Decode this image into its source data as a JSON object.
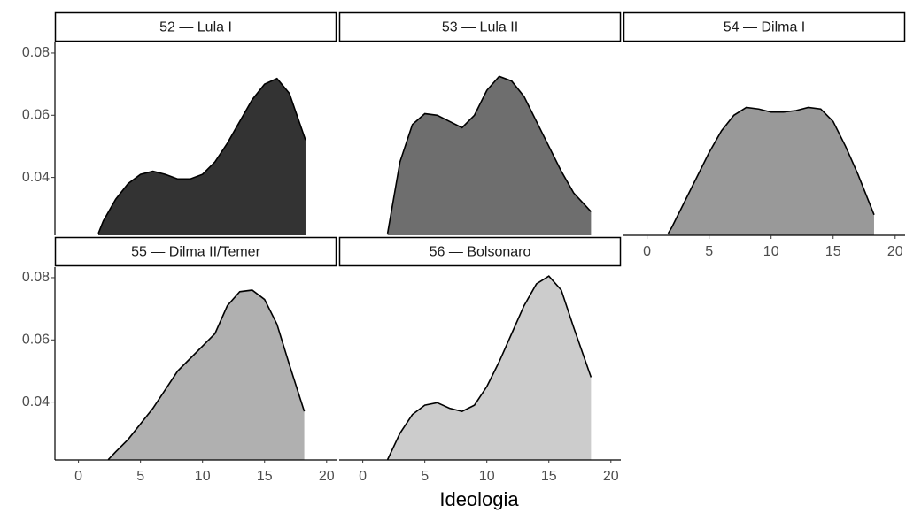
{
  "xlabel": "Ideologia",
  "chart_data": [
    {
      "type": "area",
      "title": "52 — Lula I",
      "color": "#333333",
      "x": [
        1.6,
        2,
        3,
        4,
        5,
        6,
        7,
        8,
        9,
        10,
        11,
        12,
        13,
        14,
        15,
        16,
        17,
        18.3
      ],
      "values": [
        0.022,
        0.026,
        0.033,
        0.038,
        0.041,
        0.042,
        0.041,
        0.0395,
        0.0395,
        0.041,
        0.045,
        0.051,
        0.058,
        0.065,
        0.07,
        0.0718,
        0.067,
        0.052
      ],
      "xlim": [
        -1.9,
        20.8
      ],
      "xticks": [
        0,
        5,
        10,
        15,
        20
      ],
      "ylim": [
        0.0214,
        0.0834
      ],
      "yticks": [
        0.04,
        0.06,
        0.08
      ]
    },
    {
      "type": "area",
      "title": "53 — Lula II",
      "color": "#6e6e6e",
      "x": [
        2,
        3,
        4,
        5,
        6,
        7,
        8,
        9,
        10,
        11,
        12,
        13,
        14,
        15,
        16,
        17,
        18.4
      ],
      "values": [
        0.022,
        0.045,
        0.057,
        0.0605,
        0.06,
        0.058,
        0.056,
        0.06,
        0.068,
        0.0725,
        0.071,
        0.066,
        0.058,
        0.05,
        0.042,
        0.035,
        0.029
      ],
      "xlim": [
        -1.9,
        20.8
      ],
      "xticks": [
        0,
        5,
        10,
        15,
        20
      ],
      "ylim": [
        0.0214,
        0.0834
      ],
      "yticks": [
        0.04,
        0.06,
        0.08
      ]
    },
    {
      "type": "area",
      "title": "54 — Dilma I",
      "color": "#999999",
      "x": [
        1.7,
        2,
        3,
        4,
        5,
        6,
        7,
        8,
        9,
        10,
        11,
        12,
        13,
        14,
        15,
        16,
        17,
        18.3
      ],
      "values": [
        0.022,
        0.024,
        0.032,
        0.04,
        0.048,
        0.055,
        0.06,
        0.0625,
        0.062,
        0.061,
        0.061,
        0.0615,
        0.0625,
        0.062,
        0.058,
        0.05,
        0.041,
        0.028
      ],
      "xlim": [
        -1.9,
        20.8
      ],
      "xticks": [
        0,
        5,
        10,
        15,
        20
      ],
      "ylim": [
        0.0214,
        0.0834
      ],
      "yticks": [
        0.04,
        0.06,
        0.08
      ]
    },
    {
      "type": "area",
      "title": "55 — Dilma II/Temer",
      "color": "#b0b0b0",
      "x": [
        2.4,
        3,
        4,
        5,
        6,
        7,
        8,
        9,
        10,
        11,
        12,
        13,
        14,
        15,
        16,
        17,
        18.2
      ],
      "values": [
        0.0215,
        0.024,
        0.028,
        0.033,
        0.038,
        0.044,
        0.05,
        0.054,
        0.058,
        0.062,
        0.071,
        0.0755,
        0.076,
        0.073,
        0.065,
        0.052,
        0.037
      ],
      "xlim": [
        -1.9,
        20.8
      ],
      "xticks": [
        0,
        5,
        10,
        15,
        20
      ],
      "ylim": [
        0.0214,
        0.0834
      ],
      "yticks": [
        0.04,
        0.06,
        0.08
      ]
    },
    {
      "type": "area",
      "title": "56 — Bolsonaro",
      "color": "#cccccc",
      "x": [
        2,
        3,
        4,
        5,
        6,
        7,
        8,
        9,
        10,
        11,
        12,
        13,
        14,
        15,
        16,
        17,
        18.4
      ],
      "values": [
        0.0215,
        0.03,
        0.036,
        0.039,
        0.0398,
        0.038,
        0.037,
        0.039,
        0.045,
        0.053,
        0.062,
        0.071,
        0.078,
        0.0805,
        0.076,
        0.064,
        0.048
      ],
      "xlim": [
        -1.9,
        20.8
      ],
      "xticks": [
        0,
        5,
        10,
        15,
        20
      ],
      "ylim": [
        0.0214,
        0.0834
      ],
      "yticks": [
        0.04,
        0.06,
        0.08
      ]
    }
  ]
}
